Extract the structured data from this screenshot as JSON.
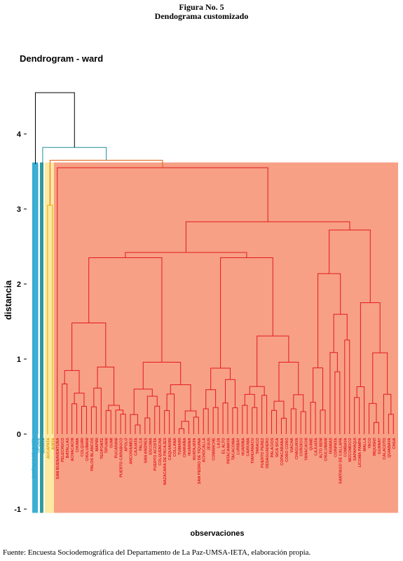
{
  "figure": {
    "number": "Figura No. 5",
    "subtitle": "Dendograma customizado"
  },
  "footer": "Fuente: Encuesta Sociodemográfica del Departamento de La Paz-UMSA-IETA, elaboración propia.",
  "chart_data": {
    "type": "dendrogram",
    "title": "Dendrogram - ward",
    "ylabel": "distancia",
    "xlabel": "observaciones",
    "ylim": [
      -1,
      4.6
    ],
    "yticks": [
      -1,
      0,
      1,
      2,
      3,
      4
    ],
    "grid": false,
    "cluster_colors": {
      "c1": "#29a6cf",
      "c2": "#1e8f96",
      "c3": "#e0b000",
      "c4": "#e41a1c",
      "merge": "#000000",
      "c4_fill": "#f7a085",
      "c3_fill": "#fde9a0"
    },
    "leaves": [
      "SANTIAGO DE HUATA",
      "TIPUANI",
      "SORATA",
      "AUCAPATA",
      "AYATA",
      "SAN BUENAVENTURA",
      "PELECHUCO",
      "BATALLAS",
      "ACHACACHI",
      "CHUMA",
      "COLQUIRI",
      "CHULUMANI",
      "PALOS BLANCOS",
      "MAPIRI",
      "TEOPONTE",
      "TIPUANI",
      "GUMI",
      "PUCARANI",
      "PUERTO CARABUCO",
      "APOLO",
      "ANCORAIMES",
      "CAJUATA",
      "PALCA",
      "SAN ANDRES",
      "ESCOMA",
      "PUERTO ACOSTA",
      "COLQUENCHA",
      "NAZACARA DE PACAJES",
      "CAQUIAVIRI",
      "COLLANA",
      "TUIMAIRI",
      "CHARAÑA",
      "HUARINA",
      "HUATAJATA",
      "SAN PEDRO DE TIQUINA",
      "ACHOCALLA",
      "JESUS",
      "COMANCHE",
      "LAJA",
      "EL ALTO",
      "PATACAMAYA",
      "TACACOMA",
      "LURIBAY",
      "HUARINA",
      "CAIROMA",
      "TIAHUANACU",
      "TARACO",
      "PUERTO PEREZ",
      "DESAGUADERO",
      "PALACIOS",
      "SICA SICA",
      "COPACABANA",
      "CORO CORO",
      "VIACHA",
      "CHAGUAYA",
      "COROICO",
      "YANACACHI",
      "QUIME",
      "CAJUATA",
      "ALTO BENI",
      "CHULUMANI",
      "IXIAMAS",
      "CORIPATA",
      "SANTIAGO DE CALLAPA",
      "COMBAYA",
      "MOCOMOCO",
      "SAPAHAQUI",
      "LICOMA PAMPA",
      "MALLA",
      "YACO",
      "INQUISIVI",
      "GUANAY",
      "CALACOTO",
      "QUIABAYA",
      "CHUA"
    ],
    "clusters": [
      {
        "name": "",
        "color": "c1",
        "leaves": [
          0,
          1
        ],
        "height": 3.6
      },
      {
        "name": "",
        "color": "c2",
        "leaves": [
          2
        ],
        "height": 3.6
      },
      {
        "name": "",
        "color": "c3",
        "leaves": [
          3,
          4
        ],
        "height": 3.6
      },
      {
        "name": "",
        "color": "c4",
        "leaves_from": 5,
        "leaves_to": 74,
        "height": 3.6
      }
    ],
    "top_merges": [
      {
        "height": 3.65,
        "join": [
          "c3",
          "c4"
        ]
      },
      {
        "height": 3.82,
        "join": [
          "c2",
          "c3+c4"
        ]
      },
      {
        "height": 4.55,
        "join": [
          "c1",
          "rest"
        ]
      }
    ]
  }
}
